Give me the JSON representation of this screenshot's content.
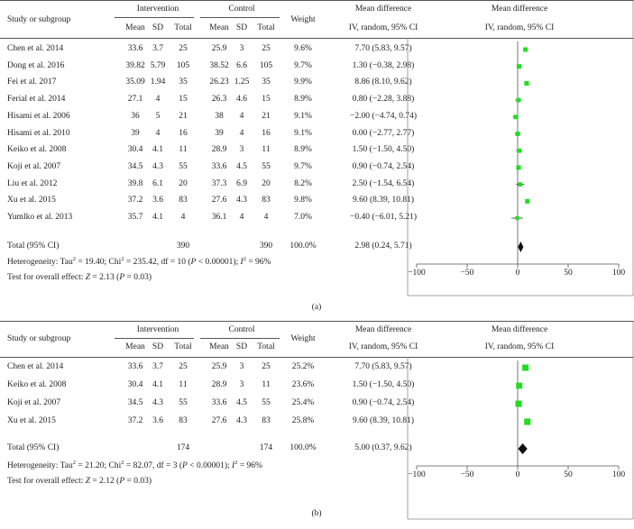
{
  "columns": {
    "study": "Study or subgroup",
    "intervention": "Intervention",
    "control": "Control",
    "mean": "Mean",
    "sd": "SD",
    "total": "Total",
    "weight": "Weight",
    "md_title": "Mean difference",
    "md_sub": "IV, random, 95% CI"
  },
  "colors": {
    "marker": "#22dd22",
    "diamond": "#111111",
    "line": "#555555"
  },
  "chart_data": [
    {
      "type": "forest",
      "label": "(a)",
      "xlim": [
        -100,
        100
      ],
      "ticks": [
        "−100",
        "−50",
        "0",
        "50",
        "100"
      ],
      "tick_values": [
        -100,
        -50,
        0,
        50,
        100
      ],
      "studies": [
        {
          "name": "Chen et al. 2014",
          "i_mean": "33.6",
          "i_sd": "3.7",
          "i_n": "25",
          "c_mean": "25.9",
          "c_sd": "3",
          "c_n": "25",
          "weight": "9.6%",
          "ci_text": "7.70 (5.83, 9.57)",
          "md": 7.7,
          "lo": 5.83,
          "hi": 9.57
        },
        {
          "name": "Dong et al. 2016",
          "i_mean": "39.82",
          "i_sd": "5.79",
          "i_n": "105",
          "c_mean": "38.52",
          "c_sd": "6.6",
          "c_n": "105",
          "weight": "9.7%",
          "ci_text": "1.30 (−0.38, 2.98)",
          "md": 1.3,
          "lo": -0.38,
          "hi": 2.98
        },
        {
          "name": "Fei et al. 2017",
          "i_mean": "35.09",
          "i_sd": "1.94",
          "i_n": "35",
          "c_mean": "26.23",
          "c_sd": "1.25",
          "c_n": "35",
          "weight": "9.9%",
          "ci_text": "8.86 (8.10, 9.62)",
          "md": 8.86,
          "lo": 8.1,
          "hi": 9.62
        },
        {
          "name": "Ferial et al. 2014",
          "i_mean": "27.1",
          "i_sd": "4",
          "i_n": "15",
          "c_mean": "26.3",
          "c_sd": "4.6",
          "c_n": "15",
          "weight": "8.9%",
          "ci_text": "0.80 (−2.28, 3.88)",
          "md": 0.8,
          "lo": -2.28,
          "hi": 3.88
        },
        {
          "name": "Hisami et al. 2006",
          "i_mean": "36",
          "i_sd": "5",
          "i_n": "21",
          "c_mean": "38",
          "c_sd": "4",
          "c_n": "21",
          "weight": "9.1%",
          "ci_text": "−2.00 (−4.74, 0.74)",
          "md": -2.0,
          "lo": -4.74,
          "hi": 0.74
        },
        {
          "name": "Hisami et al. 2010",
          "i_mean": "39",
          "i_sd": "4",
          "i_n": "16",
          "c_mean": "39",
          "c_sd": "4",
          "c_n": "16",
          "weight": "9.1%",
          "ci_text": "0.00 (−2.77, 2.77)",
          "md": 0.0,
          "lo": -2.77,
          "hi": 2.77
        },
        {
          "name": "Keiko et al. 2008",
          "i_mean": "30.4",
          "i_sd": "4.1",
          "i_n": "11",
          "c_mean": "28.9",
          "c_sd": "3",
          "c_n": "11",
          "weight": "8.9%",
          "ci_text": "1.50 (−1.50, 4.50)",
          "md": 1.5,
          "lo": -1.5,
          "hi": 4.5
        },
        {
          "name": "Koji et al. 2007",
          "i_mean": "34.5",
          "i_sd": "4.3",
          "i_n": "55",
          "c_mean": "33.6",
          "c_sd": "4.5",
          "c_n": "55",
          "weight": "9.7%",
          "ci_text": "0.90 (−0.74, 2.54)",
          "md": 0.9,
          "lo": -0.74,
          "hi": 2.54
        },
        {
          "name": "Liu et al. 2012",
          "i_mean": "39.8",
          "i_sd": "6.1",
          "i_n": "20",
          "c_mean": "37.3",
          "c_sd": "6.9",
          "c_n": "20",
          "weight": "8.2%",
          "ci_text": "2.50 (−1.54, 6.54)",
          "md": 2.5,
          "lo": -1.54,
          "hi": 6.54
        },
        {
          "name": "Xu et al. 2015",
          "i_mean": "37.2",
          "i_sd": "3.6",
          "i_n": "83",
          "c_mean": "27.6",
          "c_sd": "4.3",
          "c_n": "83",
          "weight": "9.8%",
          "ci_text": "9.60 (8.39, 10.81)",
          "md": 9.6,
          "lo": 8.39,
          "hi": 10.81
        },
        {
          "name": "Yumlko et al. 2013",
          "i_mean": "35.7",
          "i_sd": "4.1",
          "i_n": "4",
          "c_mean": "36.1",
          "c_sd": "4",
          "c_n": "4",
          "weight": "7.0%",
          "ci_text": "−0.40 (−6.01, 5.21)",
          "md": -0.4,
          "lo": -6.01,
          "hi": 5.21
        }
      ],
      "total": {
        "label": "Total (95% CI)",
        "i_n": "390",
        "c_n": "390",
        "weight": "100.0%",
        "ci_text": "2.98 (0.24, 5.71)",
        "md": 2.98,
        "lo": 0.24,
        "hi": 5.71
      },
      "het_pre": "Heterogeneity: Tau",
      "het_mid": " = 19.40; Chi",
      "het_post": " = 235.42, df = 10 (",
      "het_p": "P",
      "het_pval": " < 0.00001); ",
      "het_i": "I",
      "het_end": " = 96%",
      "sup2": "2",
      "overall_pre": "Test for overall effect: ",
      "overall_z": "Z",
      "overall_mid": " = 2.13 (",
      "overall_p": "P",
      "overall_end": " = 0.03)"
    },
    {
      "type": "forest",
      "label": "(b)",
      "xlim": [
        -100,
        100
      ],
      "ticks": [
        "−100",
        "−50",
        "0",
        "50",
        "100"
      ],
      "tick_values": [
        -100,
        -50,
        0,
        50,
        100
      ],
      "studies": [
        {
          "name": "Chen et al. 2014",
          "i_mean": "33.6",
          "i_sd": "3.7",
          "i_n": "25",
          "c_mean": "25.9",
          "c_sd": "3",
          "c_n": "25",
          "weight": "25.2%",
          "ci_text": "7.70 (5.83, 9.57)",
          "md": 7.7,
          "lo": 5.83,
          "hi": 9.57
        },
        {
          "name": "Keiko et al. 2008",
          "i_mean": "30.4",
          "i_sd": "4.1",
          "i_n": "11",
          "c_mean": "28.9",
          "c_sd": "3",
          "c_n": "11",
          "weight": "23.6%",
          "ci_text": "1.50 (−1.50, 4.50)",
          "md": 1.5,
          "lo": -1.5,
          "hi": 4.5
        },
        {
          "name": "Koji et al. 2007",
          "i_mean": "34.5",
          "i_sd": "4.3",
          "i_n": "55",
          "c_mean": "33.6",
          "c_sd": "4.5",
          "c_n": "55",
          "weight": "25.4%",
          "ci_text": "0.90 (−0.74, 2.54)",
          "md": 0.9,
          "lo": -0.74,
          "hi": 2.54
        },
        {
          "name": "Xu et al. 2015",
          "i_mean": "37.2",
          "i_sd": "3.6",
          "i_n": "83",
          "c_mean": "27.6",
          "c_sd": "4.3",
          "c_n": "83",
          "weight": "25.8%",
          "ci_text": "9.60 (8.39, 10.81)",
          "md": 9.6,
          "lo": 8.39,
          "hi": 10.81
        }
      ],
      "total": {
        "label": "Total (95% CI)",
        "i_n": "174",
        "c_n": "174",
        "weight": "100.0%",
        "ci_text": "5.00 (0.37, 9.62)",
        "md": 5.0,
        "lo": 0.37,
        "hi": 9.62
      },
      "het_pre": "Heterogeneity: Tau",
      "het_mid": " = 21.20; Chi",
      "het_post": " = 82.07, df = 3 (",
      "het_p": "P",
      "het_pval": " < 0.00001); ",
      "het_i": "I",
      "het_end": " = 96%",
      "sup2": "2",
      "overall_pre": "Test for overall effect: ",
      "overall_z": "Z",
      "overall_mid": " = 2.12 (",
      "overall_p": "P",
      "overall_end": " = 0.03)"
    }
  ]
}
